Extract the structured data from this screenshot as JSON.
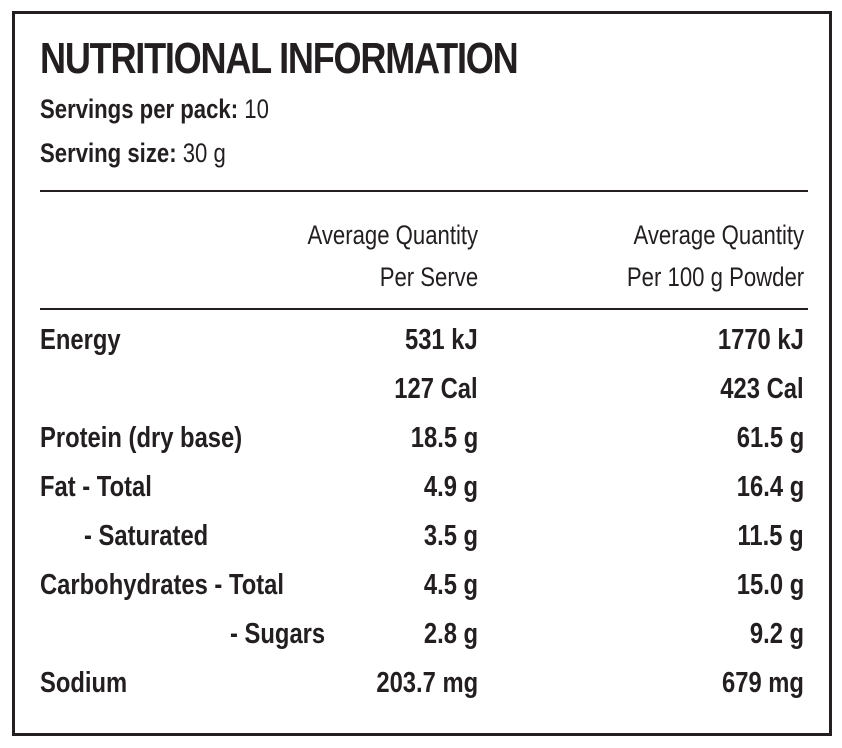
{
  "title": "NUTRITIONAL INFORMATION",
  "servings_per_pack": {
    "label": "Servings per pack:",
    "value": "10"
  },
  "serving_size": {
    "label": "Serving size:",
    "value": "30 g"
  },
  "columns": {
    "per_serve": [
      "Average Quantity",
      "Per Serve"
    ],
    "per_100g": [
      "Average Quantity",
      "Per 100 g Powder"
    ]
  },
  "rows": [
    {
      "label": "Energy",
      "per_serve": "531 kJ",
      "per_100g": "1770 kJ"
    },
    {
      "label": "",
      "per_serve": "127 Cal",
      "per_100g": "423 Cal"
    },
    {
      "label": "Protein (dry base)",
      "per_serve": "18.5 g",
      "per_100g": "61.5 g"
    },
    {
      "label": "Fat - Total",
      "per_serve": "4.9 g",
      "per_100g": "16.4 g"
    },
    {
      "label": "- Saturated",
      "per_serve": "3.5 g",
      "per_100g": "11.5 g"
    },
    {
      "label": "Carbohydrates - Total",
      "per_serve": "4.5 g",
      "per_100g": "15.0 g"
    },
    {
      "label": "- Sugars",
      "per_serve": "2.8 g",
      "per_100g": "9.2 g"
    },
    {
      "label": "Sodium",
      "per_serve": "203.7 mg",
      "per_100g": "679 mg"
    }
  ]
}
